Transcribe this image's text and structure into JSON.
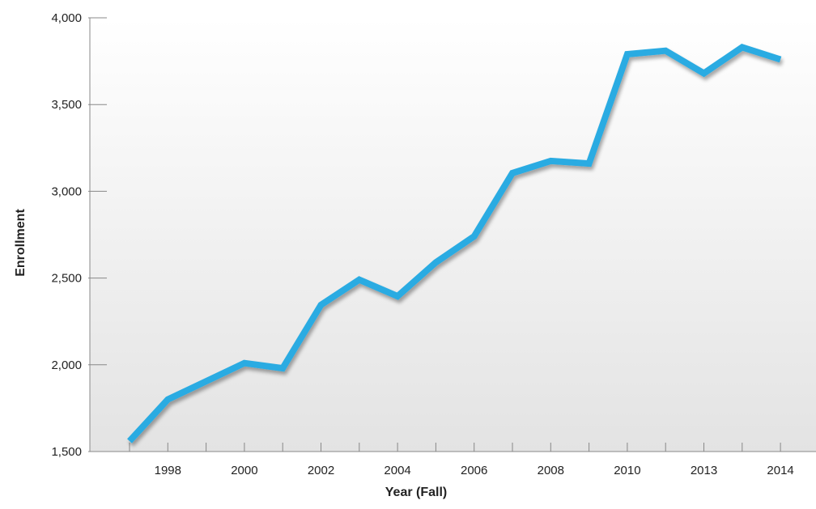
{
  "chart_data": {
    "type": "line",
    "title": "",
    "xlabel": "Year (Fall)",
    "ylabel": "Enrollment",
    "x_ticks": [
      "1998",
      "2000",
      "2002",
      "2004",
      "2006",
      "2008",
      "2010",
      "2013",
      "2014"
    ],
    "y_ticks": [
      "1,500",
      "2,000",
      "2,500",
      "3,000",
      "3,500",
      "4,000"
    ],
    "ylim": [
      1500,
      4000
    ],
    "grid": false,
    "legend": "none",
    "series": [
      {
        "values": [
          1560,
          1800,
          1905,
          2010,
          1980,
          2345,
          2490,
          2395,
          2590,
          2740,
          3105,
          3175,
          3160,
          3790,
          3810,
          3680,
          3830,
          3760
        ]
      }
    ],
    "colors": {
      "line": "#29abe2",
      "background_top": "#ffffff",
      "background_bottom": "#e3e3e3",
      "axis": "#888888"
    }
  }
}
